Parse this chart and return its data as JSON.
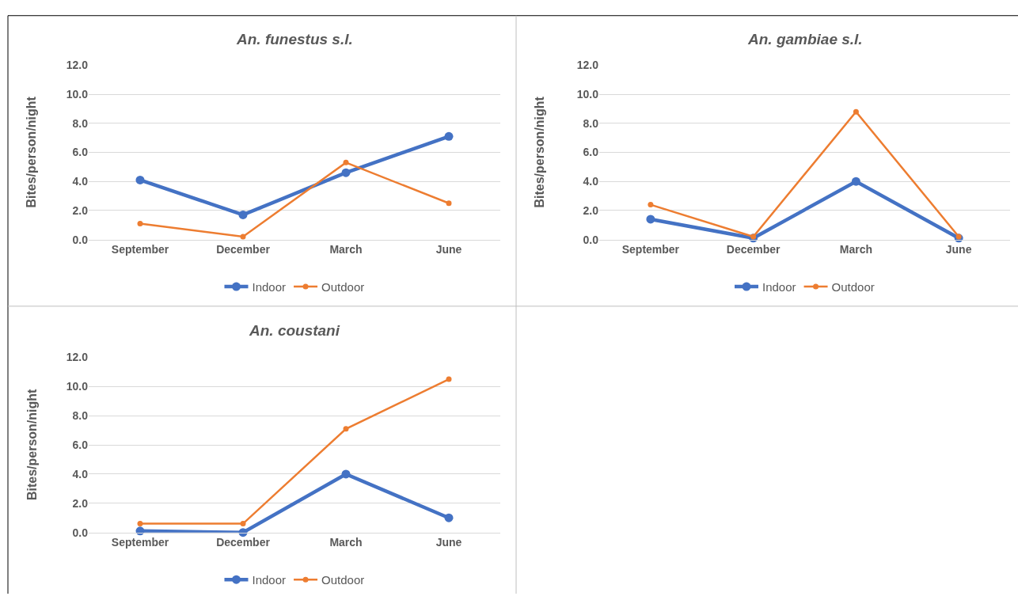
{
  "chart_data": [
    {
      "type": "line",
      "title": "An. funestus s.l.",
      "ylabel": "Bites/person/night",
      "categories": [
        "September",
        "December",
        "March",
        "June"
      ],
      "ylim": [
        0,
        12
      ],
      "yticks": [
        {
          "value": 0,
          "label": "0.0"
        },
        {
          "value": 2,
          "label": "2.0"
        },
        {
          "value": 4,
          "label": "4.0"
        },
        {
          "value": 6,
          "label": "6.0"
        },
        {
          "value": 8,
          "label": "8.0"
        },
        {
          "value": 10,
          "label": "10.0"
        },
        {
          "value": 12,
          "label": "12.0"
        }
      ],
      "grid": "y",
      "legend": "bottom",
      "marker": "circle",
      "line_style": "solid",
      "series": [
        {
          "name": "Indoor",
          "color": "#4472c4",
          "values": [
            4.1,
            1.7,
            4.6,
            7.1
          ]
        },
        {
          "name": "Outdoor",
          "color": "#ed7d31",
          "values": [
            1.1,
            0.2,
            5.3,
            2.5
          ]
        }
      ]
    },
    {
      "type": "line",
      "title": "An. gambiae s.l.",
      "ylabel": "Bites/person/night",
      "categories": [
        "September",
        "December",
        "March",
        "June"
      ],
      "ylim": [
        0,
        12
      ],
      "yticks": [
        {
          "value": 0,
          "label": "0.0"
        },
        {
          "value": 2,
          "label": "2.0"
        },
        {
          "value": 4,
          "label": "4.0"
        },
        {
          "value": 6,
          "label": "6.0"
        },
        {
          "value": 8,
          "label": "8.0"
        },
        {
          "value": 10,
          "label": "10.0"
        },
        {
          "value": 12,
          "label": "12.0"
        }
      ],
      "grid": "y",
      "legend": "bottom",
      "marker": "circle",
      "line_style": "solid",
      "series": [
        {
          "name": "Indoor",
          "color": "#4472c4",
          "values": [
            1.4,
            0.1,
            4.0,
            0.1
          ]
        },
        {
          "name": "Outdoor",
          "color": "#ed7d31",
          "values": [
            2.4,
            0.2,
            8.8,
            0.2
          ]
        }
      ]
    },
    {
      "type": "line",
      "title": "An. coustani",
      "ylabel": "Bites/person/night",
      "categories": [
        "September",
        "December",
        "March",
        "June"
      ],
      "ylim": [
        0,
        12
      ],
      "yticks": [
        {
          "value": 0,
          "label": "0.0"
        },
        {
          "value": 2,
          "label": "2.0"
        },
        {
          "value": 4,
          "label": "4.0"
        },
        {
          "value": 6,
          "label": "6.0"
        },
        {
          "value": 8,
          "label": "8.0"
        },
        {
          "value": 10,
          "label": "10.0"
        },
        {
          "value": 12,
          "label": "12.0"
        }
      ],
      "grid": "y",
      "legend": "bottom",
      "marker": "circle",
      "line_style": "solid",
      "series": [
        {
          "name": "Indoor",
          "color": "#4472c4",
          "values": [
            0.1,
            0.0,
            4.0,
            1.0
          ]
        },
        {
          "name": "Outdoor",
          "color": "#ed7d31",
          "values": [
            0.6,
            0.6,
            7.1,
            10.5
          ]
        }
      ]
    }
  ]
}
